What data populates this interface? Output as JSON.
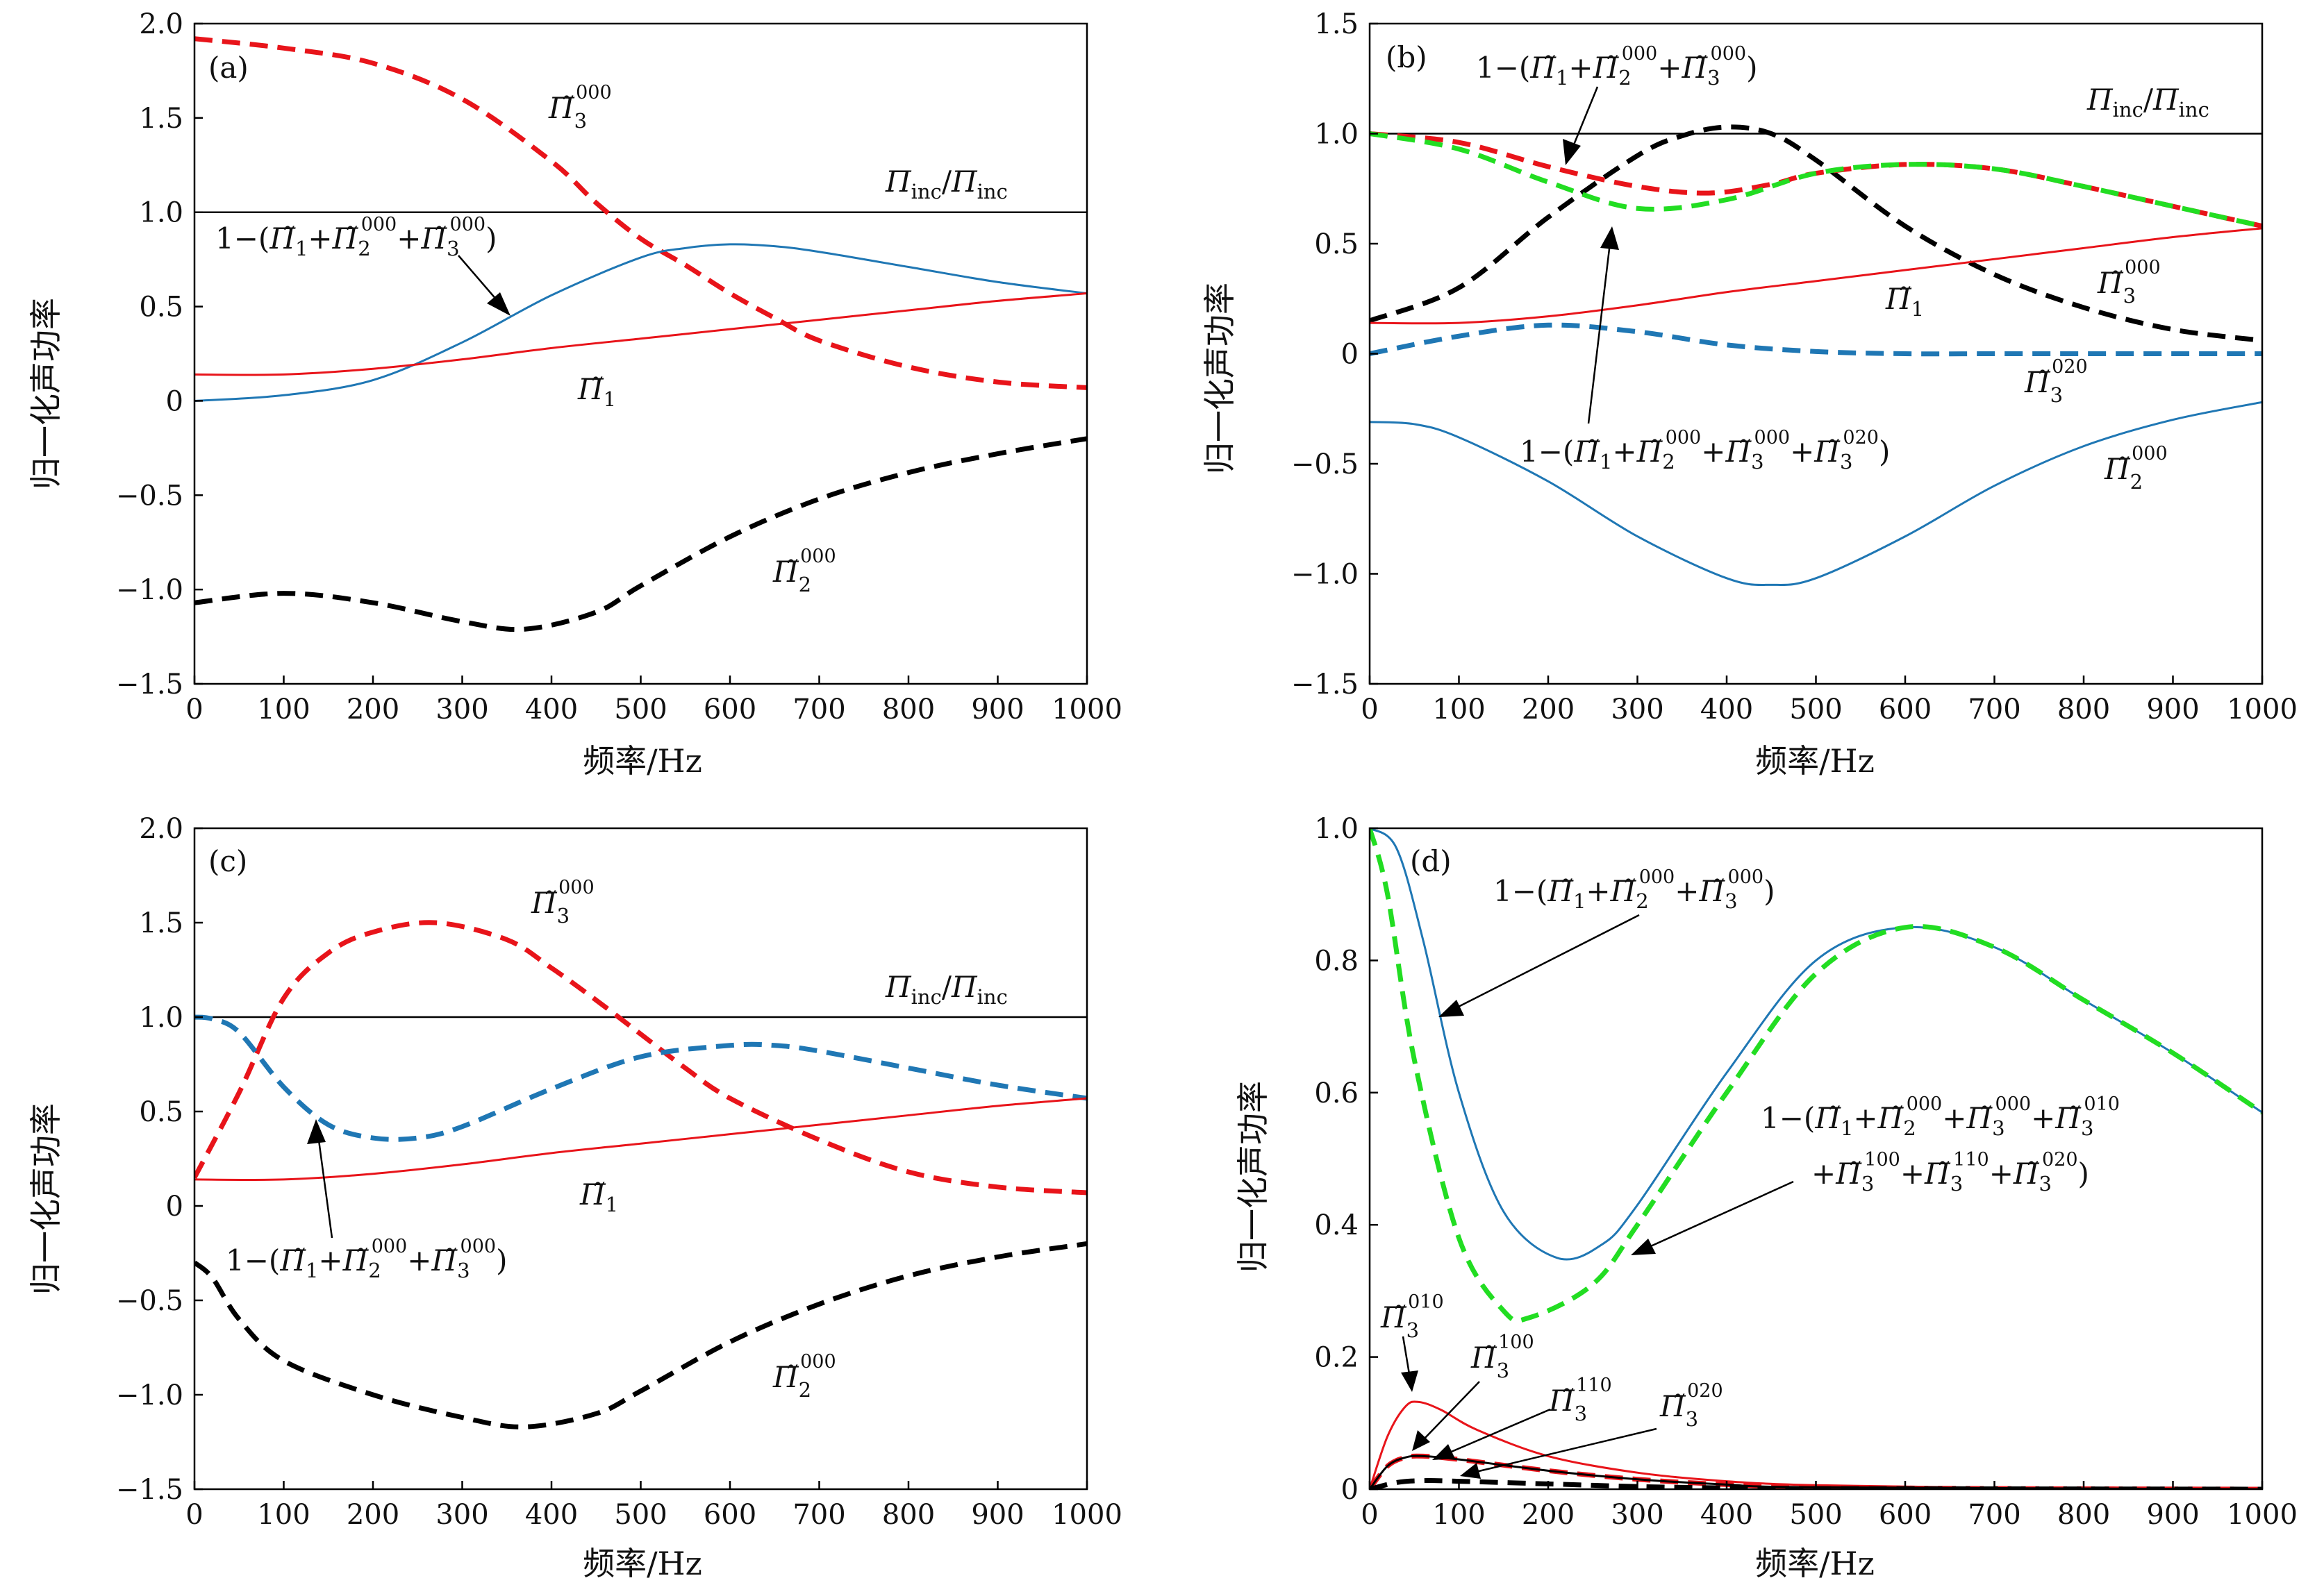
{
  "xlabel": "频率/Hz",
  "ylabel": "归一化声功率",
  "labels": {
    "pi": "Π̃",
    "pi_inc": "Π",
    "inc": "inc",
    "sub1": "1",
    "sub2": "2",
    "sub3": "3",
    "sup000": "000",
    "sup020": "020",
    "sup010": "010",
    "sup100": "100",
    "sup110": "110",
    "one_minus": "1−(",
    "plus": "+",
    "close": ")",
    "slash": "/"
  },
  "chart_data": [
    {
      "id": "a",
      "panel_label": "(a)",
      "type": "line",
      "xlim": [
        0,
        1000
      ],
      "ylim": [
        -1.5,
        2.0
      ],
      "xticks": [
        0,
        100,
        200,
        300,
        400,
        500,
        600,
        700,
        800,
        900,
        1000
      ],
      "yticks": [
        -1.5,
        -1.0,
        -0.5,
        0,
        0.5,
        1.0,
        1.5,
        2.0
      ],
      "ytick_labels": [
        "−1.5",
        "−1.0",
        "−0.5",
        "0",
        "0.5",
        "1.0",
        "1.5",
        "2.0"
      ],
      "series": [
        {
          "key": "inc",
          "color": "#000000",
          "dash": false,
          "width": 2.5,
          "x": [
            0,
            1000
          ],
          "y": [
            1.0,
            1.0
          ]
        },
        {
          "key": "pi3_000",
          "color": "#e8141a",
          "dash": true,
          "width": 7,
          "x": [
            0,
            100,
            200,
            300,
            400,
            450,
            500,
            550,
            600,
            650,
            700,
            800,
            900,
            1000
          ],
          "y": [
            1.92,
            1.87,
            1.79,
            1.6,
            1.27,
            1.05,
            0.86,
            0.72,
            0.57,
            0.44,
            0.32,
            0.18,
            0.1,
            0.07
          ]
        },
        {
          "key": "residual",
          "color": "#1f77b4",
          "dash": false,
          "width": 3,
          "x": [
            0,
            100,
            200,
            300,
            400,
            500,
            550,
            600,
            650,
            700,
            800,
            900,
            1000
          ],
          "y": [
            0,
            0.03,
            0.11,
            0.31,
            0.56,
            0.76,
            0.81,
            0.83,
            0.82,
            0.79,
            0.71,
            0.63,
            0.57
          ]
        },
        {
          "key": "pi1",
          "color": "#e8141a",
          "dash": false,
          "width": 3,
          "x": [
            0,
            100,
            200,
            300,
            400,
            500,
            600,
            700,
            800,
            900,
            1000
          ],
          "y": [
            0.14,
            0.14,
            0.17,
            0.22,
            0.28,
            0.33,
            0.38,
            0.43,
            0.48,
            0.53,
            0.57
          ]
        },
        {
          "key": "pi2_000",
          "color": "#000000",
          "dash": true,
          "width": 7,
          "x": [
            0,
            100,
            200,
            300,
            370,
            450,
            500,
            600,
            700,
            800,
            900,
            1000
          ],
          "y": [
            -1.07,
            -1.02,
            -1.07,
            -1.17,
            -1.21,
            -1.12,
            -0.98,
            -0.72,
            -0.52,
            -0.38,
            -0.28,
            -0.2
          ]
        }
      ]
    },
    {
      "id": "b",
      "panel_label": "(b)",
      "type": "line",
      "xlim": [
        0,
        1000
      ],
      "ylim": [
        -1.5,
        1.5
      ],
      "xticks": [
        0,
        100,
        200,
        300,
        400,
        500,
        600,
        700,
        800,
        900,
        1000
      ],
      "yticks": [
        -1.5,
        -1.0,
        -0.5,
        0,
        0.5,
        1.0,
        1.5
      ],
      "ytick_labels": [
        "−1.5",
        "−1.0",
        "−0.5",
        "0",
        "0.5",
        "1.0",
        "1.5"
      ],
      "series": [
        {
          "key": "inc",
          "color": "#000000",
          "dash": false,
          "width": 2.5,
          "x": [
            0,
            1000
          ],
          "y": [
            1.0,
            1.0
          ]
        },
        {
          "key": "pi2_000_b",
          "color": "#000000",
          "dash": true,
          "width": 7,
          "x": [
            0,
            100,
            200,
            300,
            350,
            400,
            450,
            500,
            600,
            700,
            800,
            900,
            1000
          ],
          "y": [
            0.15,
            0.3,
            0.62,
            0.9,
            0.99,
            1.03,
            1.0,
            0.88,
            0.58,
            0.36,
            0.21,
            0.11,
            0.06
          ]
        },
        {
          "key": "residual_b1",
          "color": "#e8141a",
          "dash": true,
          "width": 7,
          "x": [
            0,
            100,
            200,
            300,
            380,
            450,
            500,
            600,
            700,
            800,
            900,
            1000
          ],
          "y": [
            1.0,
            0.96,
            0.85,
            0.76,
            0.73,
            0.77,
            0.82,
            0.86,
            0.84,
            0.76,
            0.67,
            0.58
          ]
        },
        {
          "key": "residual_b2",
          "color": "#22dd22",
          "dash": true,
          "width": 7,
          "x": [
            0,
            100,
            200,
            300,
            400,
            500,
            600,
            700,
            800,
            900,
            1000
          ],
          "y": [
            1.0,
            0.93,
            0.78,
            0.66,
            0.7,
            0.82,
            0.86,
            0.84,
            0.76,
            0.67,
            0.58
          ]
        },
        {
          "key": "pi1",
          "color": "#e8141a",
          "dash": false,
          "width": 3,
          "x": [
            0,
            100,
            200,
            300,
            400,
            500,
            600,
            700,
            800,
            900,
            1000
          ],
          "y": [
            0.14,
            0.14,
            0.17,
            0.22,
            0.28,
            0.33,
            0.38,
            0.43,
            0.48,
            0.53,
            0.57
          ]
        },
        {
          "key": "pi3_020",
          "color": "#1f77b4",
          "dash": true,
          "width": 7,
          "x": [
            0,
            100,
            200,
            300,
            400,
            500,
            600,
            700,
            800,
            900,
            1000
          ],
          "y": [
            0,
            0.08,
            0.13,
            0.1,
            0.04,
            0.01,
            0,
            0,
            0,
            0,
            0
          ]
        },
        {
          "key": "pi2_000_b_solid",
          "color": "#1f77b4",
          "dash": false,
          "width": 3,
          "x": [
            0,
            50,
            100,
            200,
            300,
            400,
            450,
            500,
            600,
            700,
            800,
            900,
            1000
          ],
          "y": [
            -0.31,
            -0.32,
            -0.38,
            -0.58,
            -0.83,
            -1.02,
            -1.05,
            -1.02,
            -0.83,
            -0.6,
            -0.42,
            -0.3,
            -0.22
          ]
        }
      ]
    },
    {
      "id": "c",
      "panel_label": "(c)",
      "type": "line",
      "xlim": [
        0,
        1000
      ],
      "ylim": [
        -1.5,
        2.0
      ],
      "xticks": [
        0,
        100,
        200,
        300,
        400,
        500,
        600,
        700,
        800,
        900,
        1000
      ],
      "yticks": [
        -1.5,
        -1.0,
        -0.5,
        0,
        0.5,
        1.0,
        1.5,
        2.0
      ],
      "ytick_labels": [
        "−1.5",
        "−1.0",
        "−0.5",
        "0",
        "0.5",
        "1.0",
        "1.5",
        "2.0"
      ],
      "series": [
        {
          "key": "inc",
          "color": "#000000",
          "dash": false,
          "width": 2.5,
          "x": [
            0,
            1000
          ],
          "y": [
            1.0,
            1.0
          ]
        },
        {
          "key": "pi3_000_c",
          "color": "#e8141a",
          "dash": true,
          "width": 7,
          "x": [
            0,
            50,
            100,
            150,
            200,
            270,
            350,
            400,
            450,
            500,
            550,
            600,
            700,
            800,
            900,
            1000
          ],
          "y": [
            0.15,
            0.6,
            1.1,
            1.34,
            1.45,
            1.5,
            1.41,
            1.26,
            1.09,
            0.91,
            0.73,
            0.57,
            0.35,
            0.18,
            0.1,
            0.07
          ]
        },
        {
          "key": "residual_c",
          "color": "#1f77b4",
          "dash": true,
          "width": 7,
          "x": [
            0,
            20,
            50,
            100,
            150,
            200,
            250,
            300,
            400,
            500,
            600,
            650,
            700,
            800,
            900,
            1000
          ],
          "y": [
            1.0,
            0.99,
            0.92,
            0.63,
            0.43,
            0.36,
            0.36,
            0.42,
            0.62,
            0.79,
            0.85,
            0.85,
            0.82,
            0.73,
            0.64,
            0.57
          ]
        },
        {
          "key": "pi1",
          "color": "#e8141a",
          "dash": false,
          "width": 3,
          "x": [
            0,
            100,
            200,
            300,
            400,
            500,
            600,
            700,
            800,
            900,
            1000
          ],
          "y": [
            0.14,
            0.14,
            0.17,
            0.22,
            0.28,
            0.33,
            0.38,
            0.43,
            0.48,
            0.53,
            0.57
          ]
        },
        {
          "key": "pi2_000_c",
          "color": "#000000",
          "dash": true,
          "width": 7,
          "x": [
            0,
            20,
            50,
            100,
            200,
            300,
            370,
            450,
            500,
            600,
            700,
            800,
            900,
            1000
          ],
          "y": [
            -0.3,
            -0.38,
            -0.6,
            -0.82,
            -1.0,
            -1.12,
            -1.17,
            -1.1,
            -0.98,
            -0.72,
            -0.52,
            -0.37,
            -0.27,
            -0.2
          ]
        }
      ]
    },
    {
      "id": "d",
      "panel_label": "(d)",
      "type": "line",
      "xlim": [
        0,
        1000
      ],
      "ylim": [
        0,
        1.0
      ],
      "xticks": [
        0,
        100,
        200,
        300,
        400,
        500,
        600,
        700,
        800,
        900,
        1000
      ],
      "yticks": [
        0,
        0.2,
        0.4,
        0.6,
        0.8,
        1.0
      ],
      "ytick_labels": [
        "0",
        "0.2",
        "0.4",
        "0.6",
        "0.8",
        "1.0"
      ],
      "series": [
        {
          "key": "residual_d1",
          "color": "#1f77b4",
          "dash": false,
          "width": 3,
          "x": [
            0,
            30,
            60,
            100,
            150,
            210,
            260,
            300,
            400,
            500,
            600,
            700,
            800,
            900,
            1000
          ],
          "y": [
            1.0,
            0.97,
            0.83,
            0.6,
            0.42,
            0.35,
            0.37,
            0.43,
            0.63,
            0.8,
            0.85,
            0.82,
            0.74,
            0.66,
            0.57
          ]
        },
        {
          "key": "residual_d2",
          "color": "#22dd22",
          "dash": true,
          "width": 7,
          "x": [
            0,
            20,
            50,
            100,
            150,
            180,
            250,
            300,
            400,
            500,
            600,
            700,
            800,
            900,
            1000
          ],
          "y": [
            1.0,
            0.9,
            0.65,
            0.38,
            0.27,
            0.26,
            0.31,
            0.4,
            0.6,
            0.78,
            0.85,
            0.82,
            0.74,
            0.66,
            0.57
          ]
        },
        {
          "key": "pi3_010",
          "color": "#e8141a",
          "dash": false,
          "width": 3,
          "x": [
            0,
            20,
            40,
            55,
            80,
            120,
            200,
            300,
            400,
            500,
            700,
            1000
          ],
          "y": [
            0,
            0.08,
            0.125,
            0.132,
            0.12,
            0.09,
            0.05,
            0.025,
            0.012,
            0.006,
            0.002,
            0
          ]
        },
        {
          "key": "pi3_100",
          "color": "#e8141a",
          "dash": true,
          "width": 7,
          "x": [
            0,
            20,
            40,
            60,
            100,
            200,
            300,
            400,
            500,
            700,
            1000
          ],
          "y": [
            0,
            0.035,
            0.048,
            0.05,
            0.045,
            0.028,
            0.015,
            0.007,
            0.003,
            0.001,
            0
          ]
        },
        {
          "key": "pi3_110",
          "color": "#000000",
          "dash": false,
          "width": 3,
          "x": [
            0,
            20,
            40,
            60,
            100,
            200,
            300,
            400,
            500,
            1000
          ],
          "y": [
            0,
            0.035,
            0.048,
            0.05,
            0.045,
            0.028,
            0.015,
            0.007,
            0.003,
            0
          ]
        },
        {
          "key": "pi3_020_d",
          "color": "#000000",
          "dash": true,
          "width": 7,
          "x": [
            0,
            30,
            60,
            100,
            200,
            300,
            400,
            500,
            1000
          ],
          "y": [
            0,
            0.01,
            0.013,
            0.012,
            0.008,
            0.004,
            0.002,
            0.001,
            0
          ]
        }
      ]
    }
  ]
}
